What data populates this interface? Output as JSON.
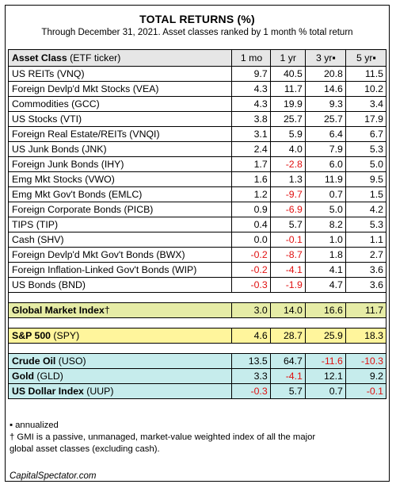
{
  "title": "TOTAL RETURNS (%)",
  "subtitle": "Through December 31, 2021. Asset classes ranked by 1 month % total return",
  "header": {
    "asset_class_bold": "Asset Class",
    "asset_class_rest": " (ETF ticker)",
    "col_1mo": "1 mo",
    "col_1yr": "1 yr",
    "col_3yr": "3 yr▪",
    "col_5yr": "5 yr▪"
  },
  "rows": [
    {
      "name": "US REITs (VNQ)",
      "m1": "9.7",
      "y1": "40.5",
      "y3": "20.8",
      "y5": "11.5"
    },
    {
      "name": "Foreign Devlp'd Mkt Stocks (VEA)",
      "m1": "4.3",
      "y1": "11.7",
      "y3": "14.6",
      "y5": "10.2"
    },
    {
      "name": "Commodities (GCC)",
      "m1": "4.3",
      "y1": "19.9",
      "y3": "9.3",
      "y5": "3.4"
    },
    {
      "name": "US Stocks (VTI)",
      "m1": "3.8",
      "y1": "25.7",
      "y3": "25.7",
      "y5": "17.9"
    },
    {
      "name": "Foreign Real Estate/REITs (VNQI)",
      "m1": "3.1",
      "y1": "5.9",
      "y3": "6.4",
      "y5": "6.7"
    },
    {
      "name": "US Junk Bonds (JNK)",
      "m1": "2.4",
      "y1": "4.0",
      "y3": "7.9",
      "y5": "5.3"
    },
    {
      "name": "Foreign Junk Bonds (IHY)",
      "m1": "1.7",
      "y1": "-2.8",
      "y3": "6.0",
      "y5": "5.0"
    },
    {
      "name": "Emg Mkt Stocks (VWO)",
      "m1": "1.6",
      "y1": "1.3",
      "y3": "11.9",
      "y5": "9.5"
    },
    {
      "name": "Emg Mkt Gov't Bonds (EMLC)",
      "m1": "1.2",
      "y1": "-9.7",
      "y3": "0.7",
      "y5": "1.5"
    },
    {
      "name": "Foreign Corporate Bonds (PICB)",
      "m1": "0.9",
      "y1": "-6.9",
      "y3": "5.0",
      "y5": "4.2"
    },
    {
      "name": "TIPS (TIP)",
      "m1": "0.4",
      "y1": "5.7",
      "y3": "8.2",
      "y5": "5.3"
    },
    {
      "name": "Cash (SHV)",
      "m1": "0.0",
      "y1": "-0.1",
      "y3": "1.0",
      "y5": "1.1"
    },
    {
      "name": "Foreign Devlp'd Mkt Gov't Bonds (BWX)",
      "m1": "-0.2",
      "y1": "-8.7",
      "y3": "1.8",
      "y5": "2.7"
    },
    {
      "name": "Foreign Inflation-Linked Gov't Bonds (WIP)",
      "m1": "-0.2",
      "y1": "-4.1",
      "y3": "4.1",
      "y5": "3.6"
    },
    {
      "name": "US Bonds (BND)",
      "m1": "-0.3",
      "y1": "-1.9",
      "y3": "4.7",
      "y5": "3.6"
    }
  ],
  "gmi": {
    "name_bold": "Global Market Index",
    "name_rest": "†",
    "m1": "3.0",
    "y1": "14.0",
    "y3": "16.6",
    "y5": "11.7"
  },
  "spy": {
    "name_bold": "S&P 500",
    "name_rest": " (SPY)",
    "m1": "4.6",
    "y1": "28.7",
    "y3": "25.9",
    "y5": "18.3"
  },
  "commodities": [
    {
      "name_bold": "Crude Oil",
      "name_rest": " (USO)",
      "m1": "13.5",
      "y1": "64.7",
      "y3": "-11.6",
      "y5": "-10.3"
    },
    {
      "name_bold": "Gold",
      "name_rest": " (GLD)",
      "m1": "3.3",
      "y1": "-4.1",
      "y3": "12.1",
      "y5": "9.2"
    },
    {
      "name_bold": "US Dollar Index",
      "name_rest": " (UUP)",
      "m1": "-0.3",
      "y1": "5.7",
      "y3": "0.7",
      "y5": "-0.1"
    }
  ],
  "notes": {
    "annualized": "▪ annualized",
    "gmi_line1": "† GMI is a passive, unmanaged, market-value weighted index of all the major",
    "gmi_line2": "global asset classes (excluding cash).",
    "source": "CapitalSpectator.com"
  },
  "colors": {
    "header_bg": "#e6e6e6",
    "gmi_bg": "#e6eca6",
    "spy_bg": "#fff59c",
    "commodities_bg": "#c6ecec",
    "negative": "#e01010"
  }
}
